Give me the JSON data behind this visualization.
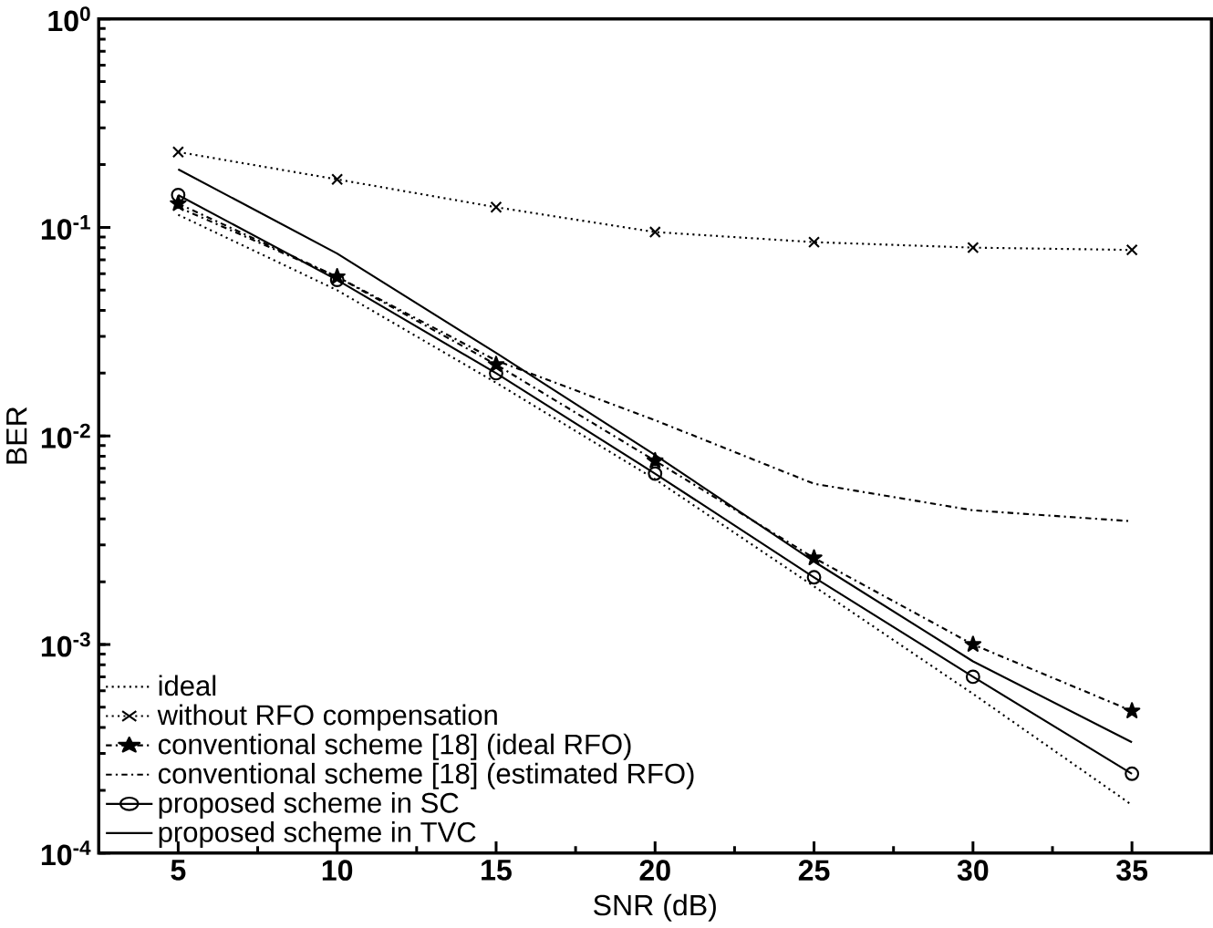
{
  "chart_data": {
    "type": "line",
    "xlabel": "SNR (dB)",
    "ylabel": "BER",
    "log": "y",
    "x": [
      5,
      10,
      15,
      20,
      25,
      30,
      35
    ],
    "xlim": [
      2.5,
      37.5
    ],
    "xticks": [
      5,
      10,
      15,
      20,
      25,
      30,
      35
    ],
    "ylim": [
      0.0001,
      1
    ],
    "yticks": [
      {
        "value": 0.0001,
        "label": "10$^{-4}$"
      },
      {
        "value": 0.001,
        "label": "10$^{-3}$"
      },
      {
        "value": 0.01,
        "label": "10$^{-2}$"
      },
      {
        "value": 0.1,
        "label": "10$^{-1}$"
      },
      {
        "value": 1,
        "label": "10$^{0}$"
      }
    ],
    "grid": false,
    "legend": "bottom left",
    "series": [
      {
        "name": "ideal",
        "color": "#000000",
        "marker": "none",
        "line_style": "dotted",
        "values": [
          0.115,
          0.05,
          0.018,
          0.0062,
          0.0019,
          0.00058,
          0.00017
        ]
      },
      {
        "name": "without RFO compensation",
        "color": "#000000",
        "marker": "cross",
        "line_style": "dotted",
        "values": [
          0.23,
          0.17,
          0.125,
          0.095,
          0.085,
          0.08,
          0.078
        ]
      },
      {
        "name": "conventional scheme [18] (ideal RFO)",
        "color": "#000000",
        "marker": "star",
        "line_style": "dashdot",
        "values": [
          0.13,
          0.058,
          0.022,
          0.0076,
          0.0026,
          0.001,
          0.00048
        ]
      },
      {
        "name": "conventional scheme [18] (estimated RFO)",
        "color": "#000000",
        "marker": "none",
        "line_style": "dashdot",
        "values": [
          0.125,
          0.058,
          0.023,
          0.0119,
          0.0059,
          0.0044,
          0.0039
        ]
      },
      {
        "name": "proposed scheme in SC",
        "color": "#000000",
        "marker": "circle",
        "line_style": "solid",
        "values": [
          0.143,
          0.056,
          0.02,
          0.0066,
          0.0021,
          0.0007,
          0.00024
        ]
      },
      {
        "name": "proposed scheme in TVC",
        "color": "#000000",
        "marker": "none",
        "line_style": "solid",
        "values": [
          0.19,
          0.075,
          0.025,
          0.0081,
          0.0025,
          0.00083,
          0.00034
        ]
      }
    ]
  }
}
